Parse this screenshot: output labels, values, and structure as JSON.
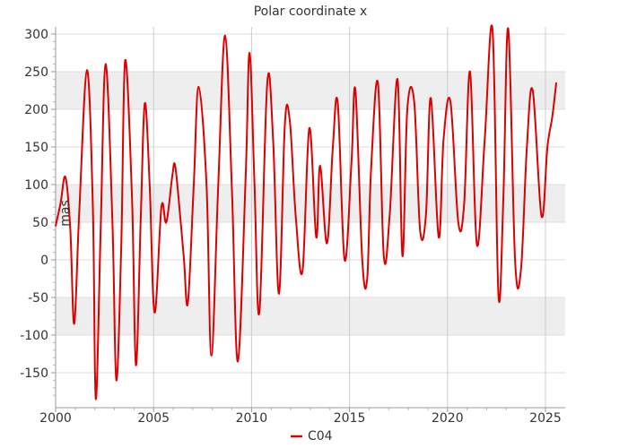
{
  "chart_data": {
    "type": "line",
    "title": "Polar coordinate x",
    "ylabel": "mas",
    "xlabel": "",
    "xlim": [
      2000,
      2025.9
    ],
    "ylim": [
      -190,
      310
    ],
    "yticks": [
      -150,
      -100,
      -50,
      0,
      50,
      100,
      150,
      200,
      250,
      300
    ],
    "xticks": [
      2000,
      2005,
      2010,
      2015,
      2020,
      2025
    ],
    "grid": true,
    "legend_position": "bottom",
    "colors": {
      "series": "#dd0000",
      "band": "#eeeeee",
      "grid": "#dddddd"
    },
    "series": [
      {
        "name": "C04",
        "x": [
          2000.0,
          2000.25,
          2000.5,
          2000.75,
          2000.95,
          2001.2,
          2001.6,
          2001.9,
          2002.05,
          2002.3,
          2002.55,
          2002.9,
          2003.1,
          2003.35,
          2003.55,
          2003.9,
          2004.1,
          2004.35,
          2004.55,
          2004.8,
          2005.05,
          2005.4,
          2005.65,
          2005.95,
          2006.1,
          2006.35,
          2006.55,
          2006.75,
          2007.05,
          2007.3,
          2007.7,
          2007.95,
          2008.3,
          2008.65,
          2009.0,
          2009.3,
          2009.7,
          2009.9,
          2010.15,
          2010.4,
          2010.8,
          2011.1,
          2011.4,
          2011.7,
          2011.95,
          2012.25,
          2012.6,
          2012.95,
          2013.3,
          2013.5,
          2013.85,
          2014.15,
          2014.4,
          2014.75,
          2015.1,
          2015.3,
          2015.65,
          2015.9,
          2016.1,
          2016.45,
          2016.75,
          2017.05,
          2017.45,
          2017.7,
          2017.95,
          2018.3,
          2018.6,
          2018.9,
          2019.15,
          2019.55,
          2019.8,
          2020.15,
          2020.55,
          2020.85,
          2021.15,
          2021.5,
          2021.9,
          2022.3,
          2022.6,
          2022.85,
          2023.1,
          2023.45,
          2023.75,
          2024.05,
          2024.35,
          2024.8,
          2025.1,
          2025.35,
          2025.55
        ],
        "values": [
          45,
          75,
          110,
          40,
          -85,
          60,
          252,
          70,
          -185,
          40,
          260,
          50,
          -160,
          20,
          265,
          80,
          -140,
          60,
          208,
          100,
          -70,
          70,
          50,
          110,
          125,
          60,
          0,
          -57,
          100,
          230,
          100,
          -127,
          100,
          298,
          90,
          -135,
          110,
          275,
          100,
          -70,
          235,
          160,
          -45,
          180,
          185,
          60,
          -15,
          175,
          30,
          125,
          22,
          150,
          208,
          0,
          130,
          225,
          0,
          -25,
          120,
          235,
          5,
          60,
          240,
          5,
          200,
          210,
          40,
          60,
          215,
          30,
          160,
          210,
          50,
          75,
          250,
          20,
          160,
          305,
          -47,
          80,
          307,
          0,
          -13,
          150,
          225,
          58,
          150,
          190,
          235
        ]
      }
    ]
  }
}
